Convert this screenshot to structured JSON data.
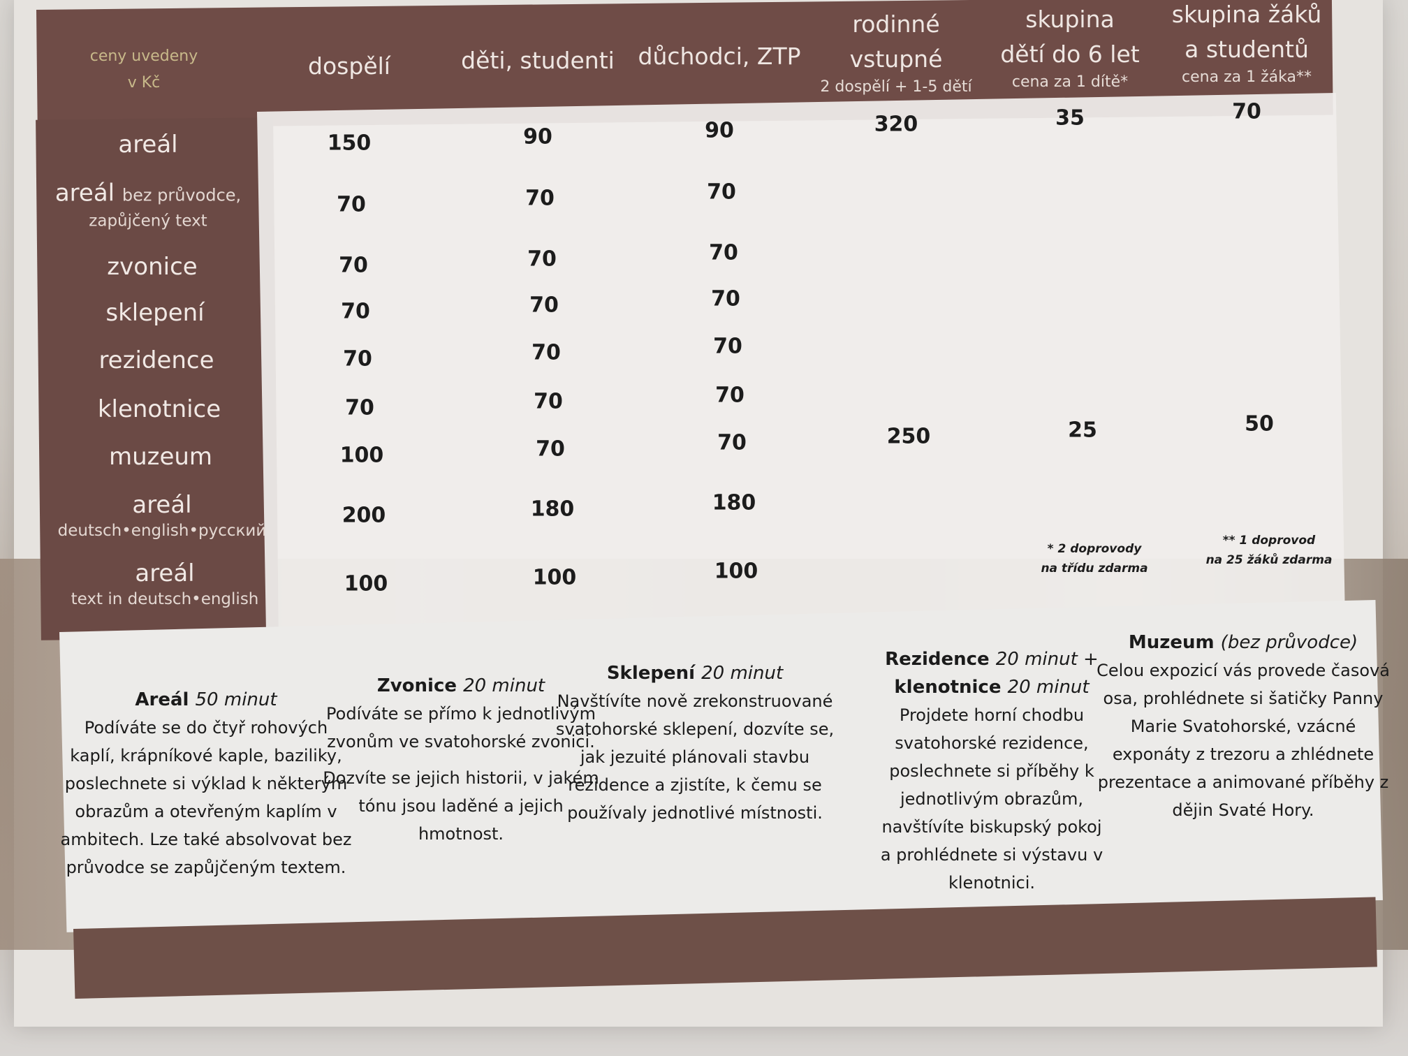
{
  "header": {
    "corner": [
      "ceny uvedeny",
      "v Kč"
    ],
    "columns": [
      {
        "lines": [
          "dospělí"
        ],
        "sub": ""
      },
      {
        "lines": [
          "děti, studenti"
        ],
        "sub": ""
      },
      {
        "lines": [
          "důchodci, ZTP"
        ],
        "sub": ""
      },
      {
        "lines": [
          "rodinné",
          "vstupné"
        ],
        "sub": "2 dospělí + 1-5 dětí"
      },
      {
        "lines": [
          "skupina",
          "dětí do 6 let"
        ],
        "sub": "cena za 1 dítě*"
      },
      {
        "lines": [
          "skupina žáků",
          "a studentů"
        ],
        "sub": "cena za 1 žáka**"
      }
    ]
  },
  "rows": [
    {
      "label": "areál",
      "inline": "",
      "sub": "",
      "values": [
        "150",
        "90",
        "90",
        "320",
        "35",
        "70"
      ]
    },
    {
      "label": "areál",
      "inline": "bez průvodce,",
      "sub": "zapůjčený text",
      "values": [
        "70",
        "70",
        "70",
        "",
        "",
        ""
      ]
    },
    {
      "label": "zvonice",
      "inline": "",
      "sub": "",
      "values": [
        "70",
        "70",
        "70",
        "",
        "",
        ""
      ]
    },
    {
      "label": "sklepení",
      "inline": "",
      "sub": "",
      "values": [
        "70",
        "70",
        "70",
        "",
        "",
        ""
      ]
    },
    {
      "label": "rezidence",
      "inline": "",
      "sub": "",
      "values": [
        "70",
        "70",
        "70",
        "",
        "",
        ""
      ]
    },
    {
      "label": "klenotnice",
      "inline": "",
      "sub": "",
      "values": [
        "70",
        "70",
        "70",
        "",
        "",
        ""
      ]
    },
    {
      "label": "muzeum",
      "inline": "",
      "sub": "",
      "values": [
        "100",
        "70",
        "70",
        "250",
        "25",
        "50"
      ]
    },
    {
      "label": "areál",
      "inline": "",
      "sub": "deutsch•english•русский",
      "values": [
        "200",
        "180",
        "180",
        "",
        "",
        ""
      ]
    },
    {
      "label": "areál",
      "inline": "",
      "sub": "text in deutsch•english",
      "values": [
        "100",
        "100",
        "100",
        "",
        "",
        ""
      ]
    }
  ],
  "footnotes": [
    [
      "* 2 doprovody",
      "na třídu zdarma"
    ],
    [
      "** 1 doprovod",
      "na 25 žáků zdarma"
    ]
  ],
  "descriptions": [
    {
      "title": "Areál",
      "title_italic": "50 minut",
      "paragraphs": [
        "Podíváte se do čtyř rohových kaplí, krápníkové kaple, baziliky, poslechnete si výklad k některým obrazům a otevřeným kaplím v ambitech. Lze také absolvovat bez průvodce se zapůjčeným textem."
      ]
    },
    {
      "title": "Zvonice",
      "title_italic": "20 minut",
      "paragraphs": [
        "Podíváte se přímo k jednotlivým zvonům ve svatohorské zvonici.",
        "Dozvíte se jejich historii, v jakém tónu jsou laděné a jejich hmotnost."
      ]
    },
    {
      "title": "Sklepení",
      "title_italic": "20 minut",
      "paragraphs": [
        "Navštívíte nově zrekonstruované svatohorské sklepení, dozvíte se, jak jezuité plánovali stavbu rezidence a zjistíte, k čemu se používaly jednotlivé místnosti."
      ]
    },
    {
      "title": "Rezidence",
      "title_italic": "20 minut +",
      "title2": "klenotnice",
      "title2_italic": "20 minut",
      "paragraphs": [
        "Projdete horní chodbu svatohorské rezidence, poslechnete si příběhy k jednotlivým obrazům, navštívíte biskupský pokoj a prohlédnete si výstavu v klenotnici."
      ]
    },
    {
      "title": "Muzeum",
      "title_italic": "(bez průvodce)",
      "paragraphs": [
        "Celou expozicí vás provede časová osa, prohlédnete si šatičky Panny Marie Svatohorské, vzácné exponáty z trezoru a zhlédnete prezentace a animované příběhy z dějin Svaté Hory."
      ]
    }
  ],
  "colors": {
    "header_brown": "#6f4c47",
    "table_white": "#f0eeec",
    "corner_text": "#c8b98a"
  }
}
